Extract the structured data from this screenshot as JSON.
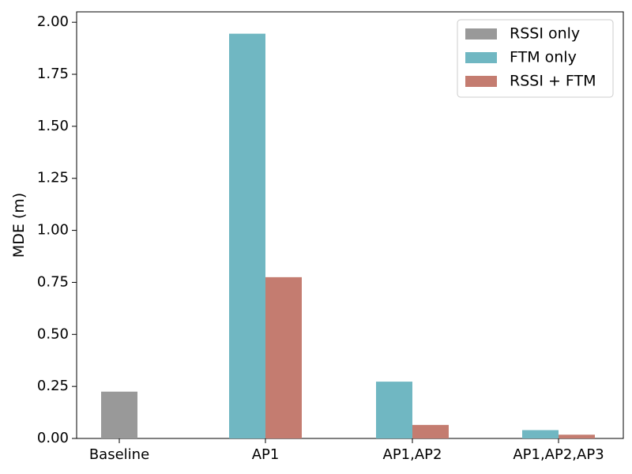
{
  "chart_data": {
    "type": "bar",
    "title": "",
    "xlabel": "",
    "ylabel": "MDE (m)",
    "categories": [
      "Baseline",
      "AP1",
      "AP1,AP2",
      "AP1,AP2,AP3"
    ],
    "series": [
      {
        "name": "RSSI only",
        "color": "#999999",
        "values": [
          0.225,
          null,
          null,
          null
        ]
      },
      {
        "name": "FTM only",
        "color": "#70b7c2",
        "values": [
          null,
          1.945,
          0.273,
          0.04
        ]
      },
      {
        "name": "RSSI + FTM",
        "color": "#c47c70",
        "values": [
          null,
          0.775,
          0.065,
          0.018
        ]
      }
    ],
    "ylim": [
      0,
      2.05
    ],
    "yticks": [
      "0.00",
      "0.25",
      "0.50",
      "0.75",
      "1.00",
      "1.25",
      "1.50",
      "1.75",
      "2.00"
    ],
    "grid": false,
    "legend_position": "top-right"
  }
}
